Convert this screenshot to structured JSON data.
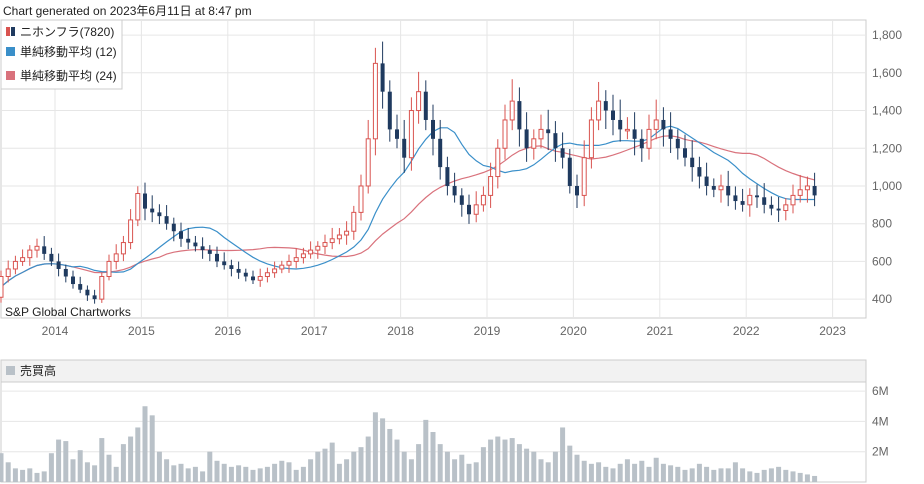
{
  "header": {
    "generated": "Chart generated on 2023年6月11日 at 8:47 pm"
  },
  "credit": "S&P Global Chartworks",
  "colors": {
    "up": "#d9534f",
    "down": "#1f3a5f",
    "sma12": "#3a8fc9",
    "sma24": "#d9727c",
    "volume": "#b9c1c8",
    "grid": "#e6e6e6",
    "frame": "#cccccc"
  },
  "chart_data": [
    {
      "type": "candlestick",
      "title": "",
      "legend": [
        {
          "label": "ニホンフラ(7820)",
          "icon": "candle-icon"
        },
        {
          "label": "単純移動平均 (12)",
          "color": "#3a8fc9"
        },
        {
          "label": "単純移動平均 (24)",
          "color": "#d9727c"
        }
      ],
      "legend_position": "top-left",
      "x_tick_labels": [
        "2014",
        "2015",
        "2016",
        "2017",
        "2018",
        "2019",
        "2020",
        "2021",
        "2022",
        "2023"
      ],
      "x_ticks_start_year": 2013.25,
      "y_ticks": [
        400,
        600,
        800,
        1000,
        1200,
        1400,
        1600,
        1800
      ],
      "y_tick_labels": [
        "400",
        "600",
        "800",
        "1,000",
        "1,200",
        "1,400",
        "1,600",
        "1,800"
      ],
      "ylim": [
        300,
        1880
      ],
      "grid": true,
      "monthly_close": [
        410,
        520,
        560,
        600,
        620,
        660,
        680,
        640,
        600,
        560,
        520,
        480,
        450,
        420,
        400,
        520,
        600,
        640,
        700,
        820,
        960,
        880,
        860,
        840,
        800,
        760,
        720,
        700,
        680,
        660,
        640,
        600,
        580,
        560,
        540,
        520,
        500,
        520,
        540,
        560,
        580,
        600,
        620,
        640,
        660,
        680,
        700,
        720,
        740,
        760,
        860,
        1000,
        1250,
        1650,
        1500,
        1300,
        1250,
        1150,
        1400,
        1500,
        1350,
        1250,
        1100,
        1000,
        950,
        900,
        850,
        900,
        950,
        1050,
        1200,
        1350,
        1450,
        1300,
        1200,
        1250,
        1300,
        1280,
        1200,
        1150,
        1000,
        950,
        1150,
        1350,
        1450,
        1400,
        1350,
        1300,
        1300,
        1250,
        1200,
        1300,
        1350,
        1300,
        1250,
        1200,
        1150,
        1100,
        1050,
        1000,
        980,
        1000,
        950,
        920,
        900,
        950,
        940,
        900,
        880,
        870,
        900,
        950,
        980,
        1000,
        950
      ],
      "sma_12": [],
      "sma_24": []
    },
    {
      "type": "bar",
      "title": "売買高",
      "legend": [
        {
          "label": "売買高",
          "color": "#b9c1c8"
        }
      ],
      "y_ticks": [
        2000000,
        4000000,
        6000000
      ],
      "y_tick_labels": [
        "2M",
        "4M",
        "6M"
      ],
      "ylim": [
        0,
        6600000
      ],
      "monthly_volume": [
        2.7,
        1.9,
        1.3,
        0.9,
        0.8,
        0.9,
        0.6,
        0.7,
        1.9,
        2.8,
        2.7,
        1.5,
        2.1,
        1.3,
        1.1,
        2.9,
        1.8,
        1.0,
        2.5,
        3.0,
        3.6,
        5.0,
        4.4,
        2.0,
        1.5,
        1.1,
        1.2,
        0.9,
        1.0,
        0.7,
        2.0,
        1.4,
        1.2,
        1.0,
        1.1,
        1.0,
        0.8,
        0.9,
        1.0,
        1.2,
        1.4,
        1.3,
        0.8,
        1.0,
        1.5,
        2.0,
        2.2,
        2.6,
        1.2,
        1.5,
        2.0,
        2.3,
        3.0,
        4.6,
        4.2,
        3.5,
        2.8,
        2.0,
        1.5,
        2.5,
        4.1,
        3.3,
        2.5,
        2.0,
        1.5,
        1.8,
        1.2,
        1.3,
        2.3,
        2.8,
        3.0,
        2.8,
        2.9,
        2.5,
        2.2,
        2.0,
        1.5,
        1.3,
        2.0,
        3.6,
        2.4,
        1.8,
        1.4,
        1.2,
        1.3,
        1.0,
        0.9,
        1.2,
        1.5,
        1.2,
        1.4,
        1.0,
        1.6,
        1.2,
        1.1,
        1.0,
        0.8,
        0.9,
        1.2,
        1.0,
        0.8,
        0.9,
        0.9,
        1.3,
        0.9,
        0.7,
        0.6,
        0.8,
        0.9,
        1.0,
        0.8,
        0.7,
        0.6,
        0.5,
        0.4
      ]
    }
  ]
}
